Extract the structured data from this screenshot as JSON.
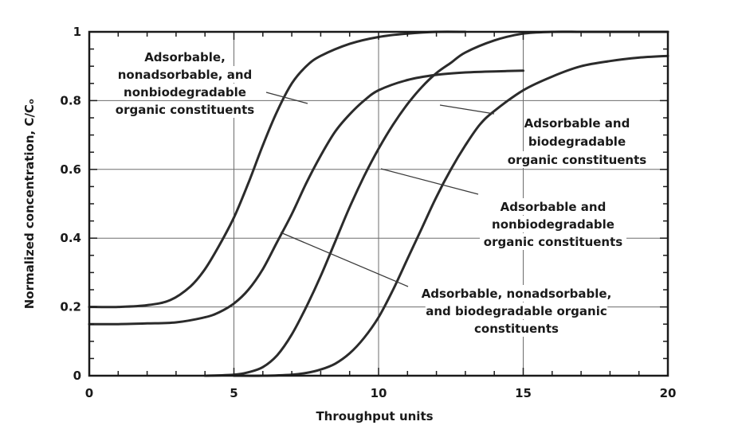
{
  "chart_data": {
    "type": "line",
    "xlabel": "Throughput units",
    "ylabel": "Normalized concentration, C/Cₒ",
    "xlim": [
      0,
      20
    ],
    "ylim": [
      0,
      1
    ],
    "x_ticks": [
      0,
      5,
      10,
      15,
      20
    ],
    "y_ticks": [
      0,
      0.2,
      0.4,
      0.6,
      0.8,
      1
    ],
    "y_tick_labels": [
      "0",
      "0.2",
      "0.4",
      "0.6",
      "0.8",
      "1"
    ],
    "x_tick_labels": [
      "0",
      "5",
      "10",
      "15",
      "20"
    ],
    "grid": true,
    "series": [
      {
        "x": [
          0,
          1,
          2,
          2.8,
          3.5,
          4,
          4.5,
          5,
          5.5,
          6,
          6.5,
          7,
          7.5,
          8,
          9,
          10,
          11,
          12,
          13
        ],
        "values": [
          0.2,
          0.2,
          0.205,
          0.22,
          0.26,
          0.31,
          0.38,
          0.46,
          0.56,
          0.67,
          0.77,
          0.85,
          0.9,
          0.93,
          0.965,
          0.985,
          0.995,
          1.0,
          1.0
        ]
      },
      {
        "x": [
          0,
          1,
          2,
          3,
          4,
          4.5,
          5,
          5.5,
          6,
          6.5,
          7,
          7.5,
          8,
          8.5,
          9,
          9.5,
          10,
          11,
          12,
          13,
          14,
          15
        ],
        "values": [
          0.15,
          0.15,
          0.152,
          0.155,
          0.17,
          0.185,
          0.21,
          0.25,
          0.31,
          0.39,
          0.47,
          0.56,
          0.64,
          0.71,
          0.76,
          0.8,
          0.83,
          0.86,
          0.875,
          0.882,
          0.885,
          0.887
        ]
      },
      {
        "x": [
          4,
          5,
          5.5,
          6,
          6.5,
          7,
          7.5,
          8,
          8.5,
          9,
          9.5,
          10,
          10.5,
          11,
          11.5,
          12,
          12.5,
          13,
          14,
          15,
          16,
          17,
          18,
          19,
          20
        ],
        "values": [
          0,
          0.003,
          0.01,
          0.025,
          0.06,
          0.12,
          0.2,
          0.29,
          0.39,
          0.49,
          0.58,
          0.66,
          0.73,
          0.79,
          0.84,
          0.88,
          0.91,
          0.94,
          0.975,
          0.995,
          1.0,
          1.0,
          1.0,
          1.0,
          1.0
        ]
      },
      {
        "x": [
          5,
          6,
          7,
          7.5,
          8,
          8.5,
          9,
          9.5,
          10,
          10.5,
          11,
          11.5,
          12,
          12.5,
          13,
          13.5,
          14,
          15,
          16,
          17,
          18,
          19,
          20
        ],
        "values": [
          0,
          0.0,
          0.003,
          0.008,
          0.018,
          0.035,
          0.065,
          0.11,
          0.17,
          0.25,
          0.34,
          0.43,
          0.52,
          0.6,
          0.67,
          0.73,
          0.77,
          0.83,
          0.87,
          0.9,
          0.915,
          0.925,
          0.93
        ]
      }
    ],
    "annotations": [
      {
        "lines": [
          "Adsorbable,",
          "nonadsorbable, and",
          "nonbiodegradable",
          "organic constituents"
        ]
      },
      {
        "lines": [
          "Adsorbable and",
          "biodegradable",
          "organic constituents"
        ]
      },
      {
        "lines": [
          "Adsorbable and",
          "nonbiodegradable",
          "organic constituents"
        ]
      },
      {
        "lines": [
          "Adsorbable,  nonadsorbable,",
          "and biodegradable organic",
          "constituents"
        ]
      }
    ]
  }
}
